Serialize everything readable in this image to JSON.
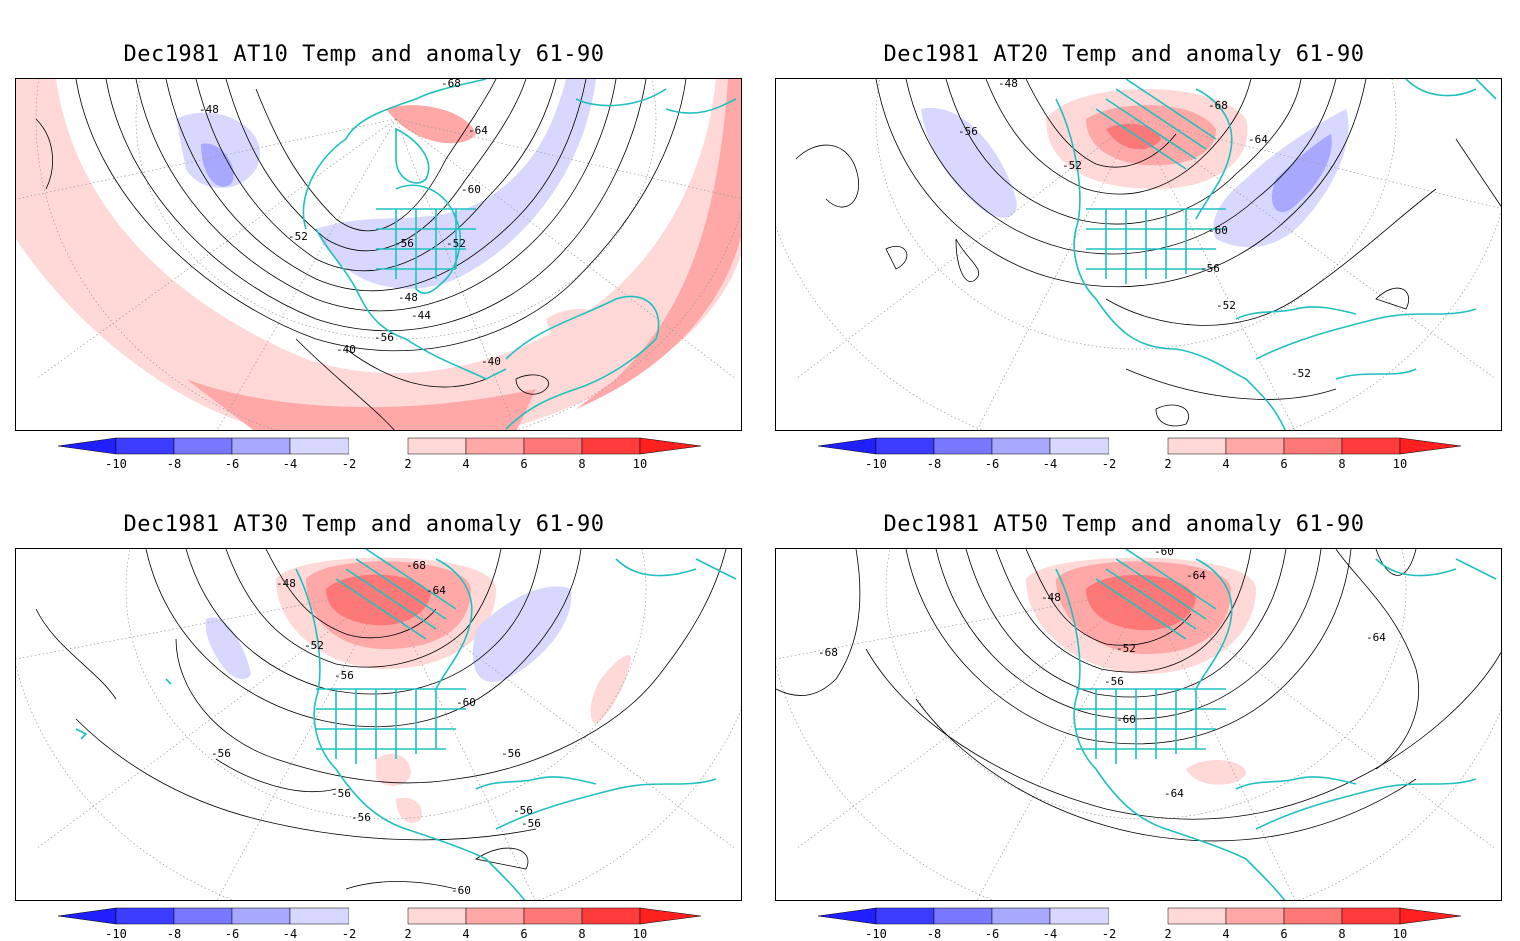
{
  "panels": [
    {
      "title": "Dec1981 AT10 Temp and anomaly 61-90",
      "contour_labels": [
        {
          "t": "-68"
        },
        {
          "t": "-48"
        },
        {
          "t": "-64"
        },
        {
          "t": "-60"
        },
        {
          "t": "-52"
        },
        {
          "t": "-56"
        },
        {
          "t": "-52"
        },
        {
          "t": "-48"
        },
        {
          "t": "-44"
        },
        {
          "t": "-56"
        },
        {
          "t": "-40"
        },
        {
          "t": "-40"
        }
      ]
    },
    {
      "title": "Dec1981 AT20 Temp and anomaly 61-90",
      "contour_labels": [
        {
          "t": "-48"
        },
        {
          "t": "-68"
        },
        {
          "t": "-56"
        },
        {
          "t": "-64"
        },
        {
          "t": "-52"
        },
        {
          "t": "-60"
        },
        {
          "t": "-56"
        },
        {
          "t": "-52"
        },
        {
          "t": "-52"
        }
      ]
    },
    {
      "title": "Dec1981 AT30 Temp and anomaly 61-90",
      "contour_labels": [
        {
          "t": "-68"
        },
        {
          "t": "-48"
        },
        {
          "t": "-64"
        },
        {
          "t": "-52"
        },
        {
          "t": "-56"
        },
        {
          "t": "-60"
        },
        {
          "t": "-56"
        },
        {
          "t": "-56"
        },
        {
          "t": "-56"
        },
        {
          "t": "-56"
        },
        {
          "t": "-56"
        },
        {
          "t": "-56"
        },
        {
          "t": "-60"
        }
      ]
    },
    {
      "title": "Dec1981 AT50 Temp and anomaly 61-90",
      "contour_labels": [
        {
          "t": "-60"
        },
        {
          "t": "-48"
        },
        {
          "t": "-64"
        },
        {
          "t": "-68"
        },
        {
          "t": "-52"
        },
        {
          "t": "-64"
        },
        {
          "t": "-56"
        },
        {
          "t": "-60"
        },
        {
          "t": "-64"
        }
      ]
    }
  ],
  "colorbar": {
    "labels": [
      "-10",
      "-8",
      "-6",
      "-4",
      "-2",
      "2",
      "4",
      "6",
      "8",
      "10"
    ],
    "colors": [
      "#2020ff",
      "#3c3cff",
      "#7878ff",
      "#a8a8ff",
      "#d8d8ff",
      "#ffffff",
      "#ffd8d8",
      "#ffa8a8",
      "#ff7878",
      "#ff3c3c",
      "#ff2020"
    ]
  },
  "coastline_color": "#20c0c0",
  "contour_color": "#000000"
}
